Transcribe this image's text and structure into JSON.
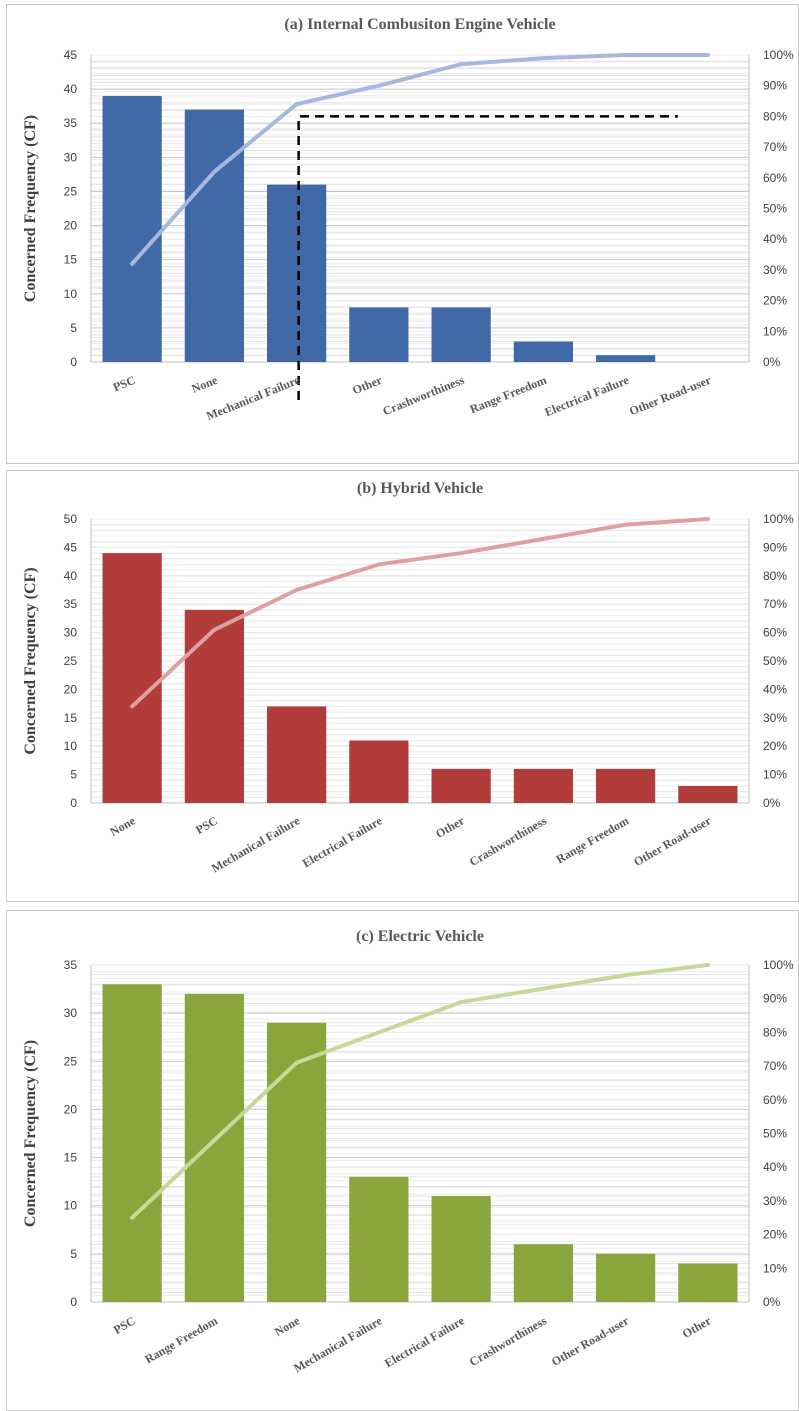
{
  "chart_data": [
    {
      "type": "bar",
      "title": "(a) Internal Combusiton Engine Vehicle",
      "ylabel": "Concerned Frequency (CF)",
      "categories": [
        "PSC",
        "None",
        "Mechanical Failure",
        "Other",
        "Crashworthiness",
        "Range Freedom",
        "Electrical Failure",
        "Other Road-user"
      ],
      "series": [
        {
          "type": "bar",
          "values": [
            39,
            37,
            26,
            8,
            8,
            3,
            1,
            0
          ]
        },
        {
          "type": "line",
          "axis": "secondary",
          "values": [
            32,
            62,
            84,
            90,
            97,
            99,
            100,
            100
          ]
        }
      ],
      "ylim": [
        0,
        45
      ],
      "yticks": [
        "0",
        "5",
        "10",
        "15",
        "20",
        "25",
        "30",
        "35",
        "40",
        "45"
      ],
      "y2lim": [
        0,
        100
      ],
      "y2ticks": [
        "0%",
        "10%",
        "20%",
        "30%",
        "40%",
        "50%",
        "60%",
        "70%",
        "80%",
        "90%",
        "100%"
      ],
      "bar_color": "#4169a8",
      "line_color": "#a7b8df",
      "annotation": {
        "type": "dashed-guide",
        "threshold": 80,
        "category": "Mechanical Failure",
        "to_category": "Other Road-user"
      },
      "grid": true
    },
    {
      "type": "bar",
      "title": "(b) Hybrid Vehicle",
      "ylabel": "Concerned Frequency (CF)",
      "categories": [
        "None",
        "PSC",
        "Mechanical Failure",
        "Electrical Failure",
        "Other",
        "Crashworthiness",
        "Range Freedom",
        "Other Road-user"
      ],
      "series": [
        {
          "type": "bar",
          "values": [
            44,
            34,
            17,
            11,
            6,
            6,
            6,
            3
          ]
        },
        {
          "type": "line",
          "axis": "secondary",
          "values": [
            34,
            61,
            75,
            84,
            88,
            93,
            98,
            100
          ]
        }
      ],
      "ylim": [
        0,
        50
      ],
      "yticks": [
        "0",
        "5",
        "10",
        "15",
        "20",
        "25",
        "30",
        "35",
        "40",
        "45",
        "50"
      ],
      "y2lim": [
        0,
        100
      ],
      "y2ticks": [
        "0%",
        "10%",
        "20%",
        "30%",
        "40%",
        "50%",
        "60%",
        "70%",
        "80%",
        "90%",
        "100%"
      ],
      "bar_color": "#b13c3a",
      "line_color": "#dea0a0",
      "grid": true
    },
    {
      "type": "bar",
      "title": "(c) Electric Vehicle",
      "ylabel": "Concerned Frequency (CF)",
      "categories": [
        "PSC",
        "Range Freedom",
        "None",
        "Mechanical Failure",
        "Electrical Failure",
        "Crashworthiness",
        "Other Road-user",
        "Other"
      ],
      "series": [
        {
          "type": "bar",
          "values": [
            33,
            32,
            29,
            13,
            11,
            6,
            5,
            4
          ]
        },
        {
          "type": "line",
          "axis": "secondary",
          "values": [
            25,
            48,
            71,
            80,
            89,
            93,
            97,
            100
          ]
        }
      ],
      "ylim": [
        0,
        35
      ],
      "yticks": [
        "0",
        "5",
        "10",
        "15",
        "20",
        "25",
        "30",
        "35"
      ],
      "y2lim": [
        0,
        100
      ],
      "y2ticks": [
        "0%",
        "10%",
        "20%",
        "30%",
        "40%",
        "50%",
        "60%",
        "70%",
        "80%",
        "90%",
        "100%"
      ],
      "bar_color": "#8aa53b",
      "line_color": "#c6d89a",
      "grid": true
    }
  ]
}
